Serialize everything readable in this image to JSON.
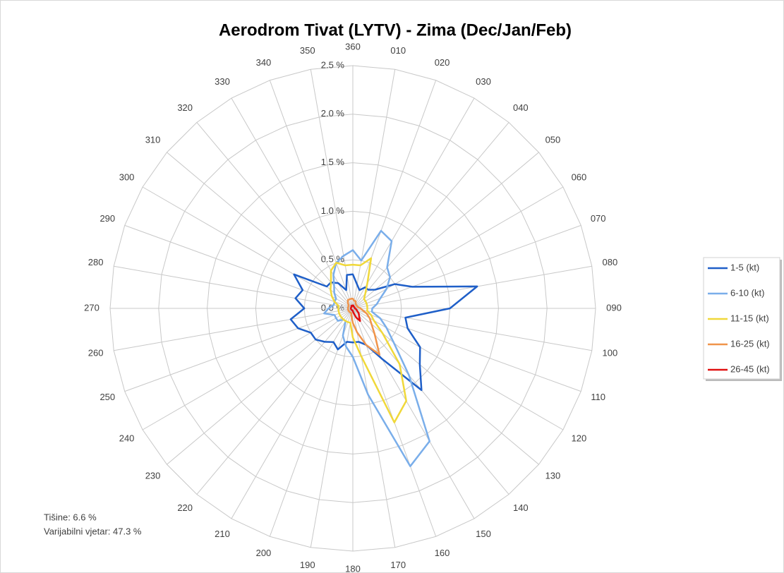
{
  "chart_data": {
    "type": "radar",
    "title": "Aerodrom Tivat (LYTV) - Zima (Dec/Jan/Feb)",
    "categories": [
      "360",
      "010",
      "020",
      "030",
      "040",
      "050",
      "060",
      "070",
      "080",
      "090",
      "100",
      "110",
      "120",
      "130",
      "140",
      "150",
      "160",
      "170",
      "180",
      "190",
      "200",
      "210",
      "220",
      "230",
      "240",
      "250",
      "260",
      "270",
      "280",
      "290",
      "300",
      "310",
      "320",
      "330",
      "340",
      "350"
    ],
    "ylim": [
      0,
      2.5
    ],
    "yticks": [
      {
        "value": 0,
        "label": "0.0 %"
      },
      {
        "value": 0.5,
        "label": "0.5 %"
      },
      {
        "value": 1,
        "label": "1.0 %"
      },
      {
        "value": 1.5,
        "label": "1.5 %"
      },
      {
        "value": 2,
        "label": "2.0 %"
      },
      {
        "value": 2.5,
        "label": "2.5 %"
      }
    ],
    "grid": true,
    "legend": "right",
    "annotations": [
      "Tišine: 6.6 %",
      "Varijabilni vjetar: 47.3 %"
    ],
    "series": [
      {
        "name": "1-5 (kt)",
        "color": "#1f5fc8",
        "values": [
          0.35,
          0.25,
          0.2,
          0.25,
          0.25,
          0.3,
          0.5,
          0.65,
          1.3,
          1.0,
          0.55,
          0.6,
          0.8,
          0.9,
          1.1,
          0.6,
          0.4,
          0.35,
          0.35,
          0.35,
          0.45,
          0.4,
          0.45,
          0.5,
          0.5,
          0.6,
          0.65,
          0.5,
          0.6,
          0.55,
          0.7,
          0.35,
          0.35,
          0.3,
          0.2,
          0.35
        ]
      },
      {
        "name": "6-10 (kt)",
        "color": "#7aaeea",
        "values": [
          0.6,
          0.5,
          0.85,
          0.8,
          0.55,
          0.5,
          0.4,
          0.3,
          0.25,
          0.2,
          0.2,
          0.3,
          0.4,
          0.55,
          0.9,
          1.58,
          1.73,
          0.9,
          0.5,
          0.4,
          0.3,
          0.15,
          0.15,
          0.2,
          0.2,
          0.2,
          0.3,
          0.25,
          0.2,
          0.2,
          0.2,
          0.25,
          0.3,
          0.4,
          0.5,
          0.55
        ]
      },
      {
        "name": "11-15 (kt)",
        "color": "#f0d83a",
        "values": [
          0.45,
          0.45,
          0.55,
          0.3,
          0.2,
          0.15,
          0.15,
          0.15,
          0.15,
          0.15,
          0.15,
          0.2,
          0.25,
          0.4,
          0.75,
          1.1,
          1.25,
          0.5,
          0.3,
          0.15,
          0.15,
          0.15,
          0.15,
          0.15,
          0.15,
          0.15,
          0.15,
          0.15,
          0.15,
          0.2,
          0.25,
          0.3,
          0.35,
          0.45,
          0.5,
          0.45
        ]
      },
      {
        "name": "16-25 (kt)",
        "color": "#f0944a",
        "values": [
          0.1,
          0.08,
          0.08,
          0.06,
          0.05,
          0.05,
          0.05,
          0.05,
          0.06,
          0.08,
          0.1,
          0.15,
          0.2,
          0.25,
          0.35,
          0.55,
          0.4,
          0.25,
          0.15,
          0.08,
          0.05,
          0.05,
          0.05,
          0.05,
          0.05,
          0.05,
          0.05,
          0.05,
          0.05,
          0.05,
          0.05,
          0.06,
          0.08,
          0.1,
          0.1,
          0.1
        ]
      },
      {
        "name": "26-45 (kt)",
        "color": "#e01010",
        "values": [
          0.03,
          0.03,
          0.02,
          0.02,
          0.02,
          0.02,
          0.02,
          0.02,
          0.02,
          0.02,
          0.03,
          0.04,
          0.05,
          0.08,
          0.1,
          0.15,
          0.1,
          0.05,
          0.03,
          0.02,
          0.02,
          0.02,
          0.02,
          0.02,
          0.02,
          0.02,
          0.02,
          0.02,
          0.02,
          0.02,
          0.02,
          0.02,
          0.02,
          0.03,
          0.03,
          0.03
        ]
      }
    ]
  }
}
